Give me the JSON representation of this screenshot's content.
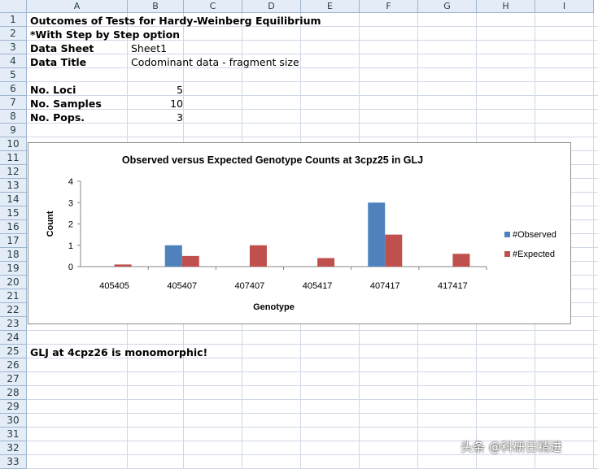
{
  "columns": [
    "A",
    "B",
    "C",
    "D",
    "E",
    "F",
    "G",
    "H",
    "I"
  ],
  "rows": [
    "1",
    "2",
    "3",
    "4",
    "5",
    "6",
    "7",
    "8",
    "9",
    "10",
    "11",
    "12",
    "13",
    "14",
    "15",
    "16",
    "17",
    "18",
    "19",
    "20",
    "21",
    "22",
    "23",
    "24",
    "25",
    "26",
    "27",
    "28",
    "29",
    "30",
    "31",
    "32",
    "33"
  ],
  "cells": {
    "title1": "Outcomes of Tests for Hardy-Weinberg Equilibrium",
    "title2": "*With Step by Step option",
    "data_sheet_label": "Data Sheet",
    "data_sheet_value": "Sheet1",
    "data_title_label": "Data Title",
    "data_title_value": "Codominant data - fragment size",
    "loci_label": "No. Loci",
    "loci_value": "5",
    "samples_label": "No. Samples",
    "samples_value": "10",
    "pops_label": "No. Pops.",
    "pops_value": "3",
    "monomorphic": "GLJ at 4cpz26 is monomorphic!"
  },
  "chart_data": {
    "type": "bar",
    "title": "Observed versus Expected Genotype Counts at 3cpz25 in GLJ",
    "xlabel": "Genotype",
    "ylabel": "Count",
    "categories": [
      "405405",
      "405407",
      "407407",
      "405417",
      "407417",
      "417417"
    ],
    "ylim": [
      0,
      4
    ],
    "yticks": [
      "0",
      "1",
      "2",
      "3",
      "4"
    ],
    "series": [
      {
        "name": "#Observed",
        "color": "#4f81bd",
        "values": [
          0,
          1,
          0,
          0,
          3,
          0
        ]
      },
      {
        "name": "#Expected",
        "color": "#c0504d",
        "values": [
          0.1,
          0.5,
          1.0,
          0.4,
          1.5,
          0.6
        ]
      }
    ],
    "legend": "right",
    "grid": false
  },
  "watermark": "头条 @科研日精进"
}
